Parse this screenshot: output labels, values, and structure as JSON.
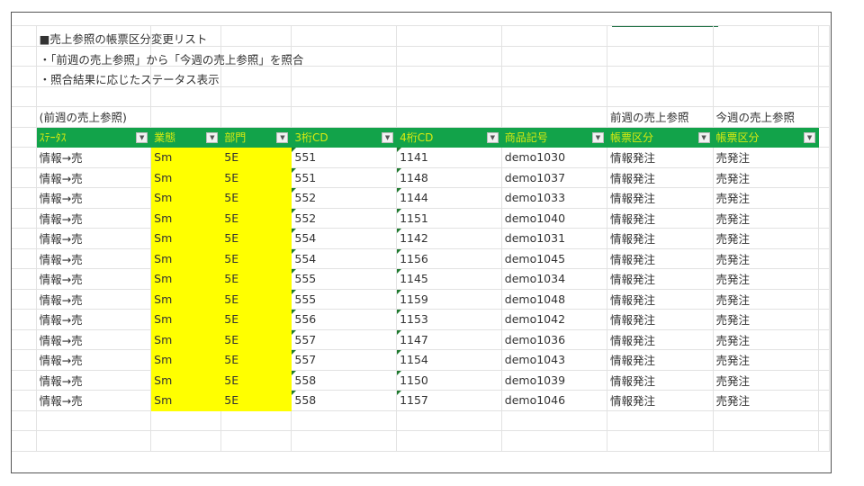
{
  "sheet": {
    "title": "■売上参照の帳票区分変更リスト",
    "note1": "・「前週の売上参照」から「今週の売上参照」を照合",
    "note2": "・照合結果に応じたステータス表示",
    "section_label": "(前週の売上参照)",
    "group_header_prev": "前週の売上参照",
    "group_header_curr": "今週の売上参照",
    "columns": [
      "ｽﾃｰﾀｽ",
      "業態",
      "部門",
      "3桁CD",
      "4桁CD",
      "商品記号",
      "帳票区分",
      "帳票区分"
    ],
    "filter_icon": "dropdown-arrow-icon",
    "colors": {
      "header_bg": "#12a34a",
      "highlight": "#ffff00",
      "header_text": "#d8ea10"
    },
    "rows": [
      [
        "情報→売",
        "Sm",
        "5E",
        "551",
        "1141",
        "demo1030",
        "情報発注",
        "売発注"
      ],
      [
        "情報→売",
        "Sm",
        "5E",
        "551",
        "1148",
        "demo1037",
        "情報発注",
        "売発注"
      ],
      [
        "情報→売",
        "Sm",
        "5E",
        "552",
        "1144",
        "demo1033",
        "情報発注",
        "売発注"
      ],
      [
        "情報→売",
        "Sm",
        "5E",
        "552",
        "1151",
        "demo1040",
        "情報発注",
        "売発注"
      ],
      [
        "情報→売",
        "Sm",
        "5E",
        "554",
        "1142",
        "demo1031",
        "情報発注",
        "売発注"
      ],
      [
        "情報→売",
        "Sm",
        "5E",
        "554",
        "1156",
        "demo1045",
        "情報発注",
        "売発注"
      ],
      [
        "情報→売",
        "Sm",
        "5E",
        "555",
        "1145",
        "demo1034",
        "情報発注",
        "売発注"
      ],
      [
        "情報→売",
        "Sm",
        "5E",
        "555",
        "1159",
        "demo1048",
        "情報発注",
        "売発注"
      ],
      [
        "情報→売",
        "Sm",
        "5E",
        "556",
        "1153",
        "demo1042",
        "情報発注",
        "売発注"
      ],
      [
        "情報→売",
        "Sm",
        "5E",
        "557",
        "1147",
        "demo1036",
        "情報発注",
        "売発注"
      ],
      [
        "情報→売",
        "Sm",
        "5E",
        "557",
        "1154",
        "demo1043",
        "情報発注",
        "売発注"
      ],
      [
        "情報→売",
        "Sm",
        "5E",
        "558",
        "1150",
        "demo1039",
        "情報発注",
        "売発注"
      ],
      [
        "情報→売",
        "Sm",
        "5E",
        "558",
        "1157",
        "demo1046",
        "情報発注",
        "売発注"
      ]
    ]
  }
}
